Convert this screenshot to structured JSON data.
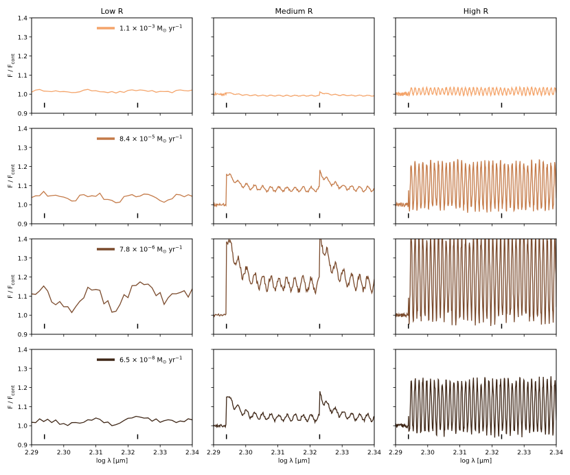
{
  "figure": {
    "column_titles": [
      "Low R",
      "Medium R",
      "High R"
    ],
    "ylabel_main": "F / F",
    "ylabel_sub": "cont",
    "xlabel": "log λ [μm]"
  },
  "chart_data": {
    "type": "line",
    "xlim": [
      2.29,
      2.34
    ],
    "ylim": [
      0.9,
      1.4
    ],
    "xticks": [
      "2.29",
      "2.30",
      "2.31",
      "2.32",
      "2.33",
      "2.34"
    ],
    "xtick_values": [
      2.29,
      2.3,
      2.31,
      2.32,
      2.33,
      2.34
    ],
    "yticks": [
      "0.9",
      "1.0",
      "1.1",
      "1.2",
      "1.3",
      "1.4"
    ],
    "ytick_values": [
      0.9,
      1.0,
      1.1,
      1.2,
      1.3,
      1.4
    ],
    "marker_x": [
      2.294,
      2.323
    ],
    "rows": [
      {
        "legend": {
          "mantissa": "1.1",
          "exponent": "−3",
          "unit": "M",
          "unit_sub": "⊙",
          "rate": "yr",
          "rate_exp": "−1"
        },
        "color": "#f4a46a",
        "amp": [
          0.015,
          0.02,
          0.03
        ],
        "base": [
          1.015,
          1.012,
          1.015
        ]
      },
      {
        "legend": {
          "mantissa": "8.4",
          "exponent": "−5",
          "unit": "M",
          "unit_sub": "⊙",
          "rate": "yr",
          "rate_exp": "−1"
        },
        "color": "#c47a48",
        "amp": [
          0.04,
          0.1,
          0.22
        ],
        "base": [
          1.04,
          1.1,
          1.1
        ]
      },
      {
        "legend": {
          "mantissa": "7.8",
          "exponent": "−6",
          "unit": "M",
          "unit_sub": "⊙",
          "rate": "yr",
          "rate_exp": "−1"
        },
        "color": "#7a4a2c",
        "amp": [
          0.1,
          0.3,
          0.4
        ],
        "base": [
          1.08,
          1.18,
          1.2
        ]
      },
      {
        "legend": {
          "mantissa": "6.5",
          "exponent": "−8",
          "unit": "M",
          "unit_sub": "⊙",
          "rate": "yr",
          "rate_exp": "−1"
        },
        "color": "#3e2616",
        "amp": [
          0.03,
          0.14,
          0.25
        ],
        "base": [
          1.02,
          1.06,
          1.1
        ]
      }
    ]
  }
}
